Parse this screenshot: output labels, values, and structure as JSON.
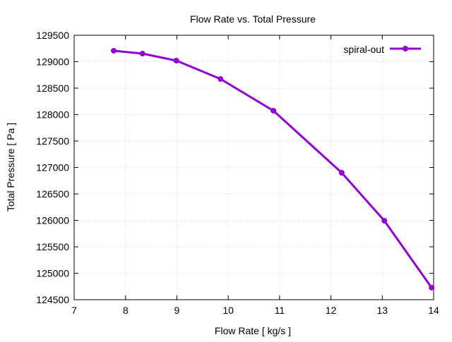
{
  "chart_data": {
    "type": "line",
    "title": "Flow Rate vs. Total Pressure",
    "xlabel": "Flow Rate [ kg/s ]",
    "ylabel": "Total Pressure [ Pa ]",
    "xlim": [
      7,
      14
    ],
    "ylim": [
      124500,
      129500
    ],
    "xticks": [
      7,
      8,
      9,
      10,
      11,
      12,
      13,
      14
    ],
    "yticks": [
      124500,
      125000,
      125500,
      126000,
      126500,
      127000,
      127500,
      128000,
      128500,
      129000,
      129500
    ],
    "grid": true,
    "legend_position": "top-right",
    "series": [
      {
        "name": "spiral-out",
        "color": "#9400d3",
        "x": [
          7.77,
          8.33,
          8.99,
          9.85,
          10.88,
          12.21,
          13.04,
          13.96
        ],
        "y": [
          129207,
          129153,
          129020,
          128673,
          128073,
          126900,
          125993,
          124727
        ]
      }
    ]
  }
}
